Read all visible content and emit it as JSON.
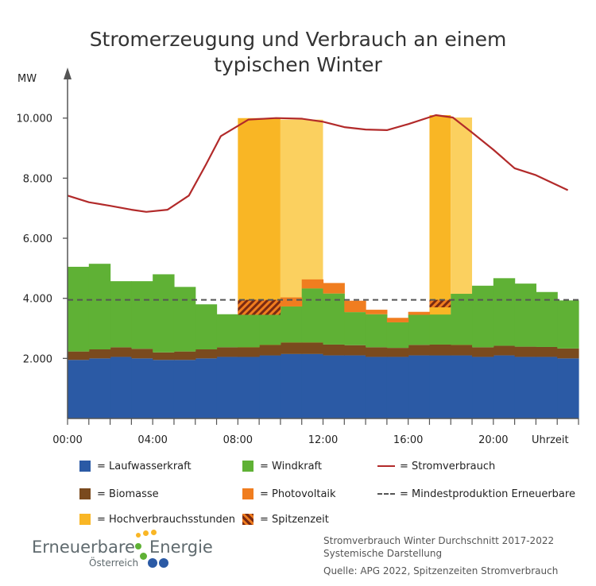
{
  "chart_data": {
    "type": "area",
    "title_line1": "Stromerzeugung und Verbrauch an einem",
    "title_line2": "typischen Winter",
    "ylabel": "MW",
    "xlabel": "Uhrzeit",
    "ylim": [
      0,
      11500
    ],
    "xlim": [
      0,
      24
    ],
    "y_ticks": [
      2000,
      4000,
      6000,
      8000,
      10000
    ],
    "y_tick_labels": [
      "2.000",
      "4.000",
      "6.000",
      "8.000",
      "10.000"
    ],
    "x_tick_hours": [
      0,
      4,
      8,
      12,
      16,
      20
    ],
    "x_tick_labels": [
      "00:00",
      "04:00",
      "08:00",
      "12:00",
      "16:00",
      "20:00"
    ],
    "hours": [
      0,
      1,
      2,
      3,
      4,
      5,
      6,
      7,
      8,
      9,
      10,
      11,
      12,
      13,
      14,
      15,
      16,
      17,
      18,
      19,
      20,
      21,
      22,
      23
    ],
    "stacked_series": [
      {
        "name": "Laufwasserkraft",
        "color": "#2b5aa5",
        "values": [
          1950,
          2000,
          2050,
          2000,
          1950,
          1950,
          2000,
          2050,
          2050,
          2100,
          2150,
          2150,
          2100,
          2100,
          2050,
          2050,
          2100,
          2100,
          2100,
          2050,
          2100,
          2050,
          2050,
          2000
        ]
      },
      {
        "name": "Biomasse",
        "color": "#7a4a1e",
        "values": [
          280,
          300,
          320,
          320,
          250,
          280,
          300,
          320,
          320,
          350,
          380,
          380,
          360,
          340,
          320,
          300,
          350,
          360,
          350,
          320,
          320,
          340,
          330,
          330
        ]
      },
      {
        "name": "Windkraft",
        "color": "#5fb135",
        "values": [
          2820,
          2850,
          2200,
          2250,
          2600,
          2150,
          1500,
          1100,
          1100,
          1100,
          1200,
          1800,
          1700,
          1100,
          1100,
          850,
          1000,
          1000,
          1700,
          2050,
          2250,
          2100,
          1830,
          1600
        ]
      },
      {
        "name": "Photovoltaik",
        "color": "#f07d1f",
        "values": [
          0,
          0,
          0,
          0,
          0,
          0,
          0,
          0,
          100,
          250,
          300,
          300,
          350,
          380,
          150,
          150,
          100,
          0,
          0,
          0,
          0,
          0,
          0,
          0
        ]
      }
    ],
    "consumption": {
      "name": "Stromverbrauch",
      "color": "#b22a2a",
      "x": [
        0,
        1,
        2,
        3,
        3.7,
        4.7,
        5.7,
        6.5,
        7.2,
        8.5,
        9.8,
        11,
        12,
        13,
        14,
        15,
        16,
        17.3,
        18.1,
        19,
        20,
        21,
        22,
        23.5
      ],
      "values": [
        7420,
        7200,
        7080,
        6950,
        6880,
        6950,
        7420,
        8450,
        9400,
        9950,
        10000,
        9980,
        9880,
        9700,
        9620,
        9600,
        9800,
        10100,
        10020,
        9520,
        8950,
        8330,
        8100,
        7600
      ]
    },
    "min_renewable": {
      "name": "Mindestproduktion Erneuerbare",
      "color": "#555555",
      "value": 3950
    },
    "peak_hours": [
      {
        "start": 8,
        "end": 10,
        "top": 10000,
        "color": "#f9b625"
      },
      {
        "start": 10,
        "end": 12,
        "top": 9950,
        "color": "#fbd05f"
      },
      {
        "start": 17,
        "end": 18,
        "top": 10100,
        "color": "#f9b625"
      },
      {
        "start": 18,
        "end": 19,
        "top": 10020,
        "color": "#fbd05f"
      }
    ],
    "spitzenzeit": [
      {
        "start": 8,
        "end": 10,
        "bottom": 3450,
        "top": 3950
      },
      {
        "start": 17,
        "end": 18,
        "bottom": 3700,
        "top": 3950
      }
    ]
  },
  "legend": [
    {
      "label": "= Laufwasserkraft",
      "color": "#2b5aa5",
      "kind": "box"
    },
    {
      "label": "= Windkraft",
      "color": "#5fb135",
      "kind": "box"
    },
    {
      "label": "= Stromverbrauch",
      "color": "#b22a2a",
      "kind": "line"
    },
    {
      "label": "= Biomasse",
      "color": "#7a4a1e",
      "kind": "box"
    },
    {
      "label": "= Photovoltaik",
      "color": "#f07d1f",
      "kind": "box"
    },
    {
      "label": "= Mindestproduktion Erneuerbare",
      "color": "#555555",
      "kind": "dash"
    },
    {
      "label": "= Hochverbrauchsstunden",
      "color": "#f9b625",
      "kind": "box"
    },
    {
      "label": "= Spitzenzeit",
      "color": "#f07d1f",
      "kind": "hatch"
    }
  ],
  "logo": {
    "word1": "Erneuerbare",
    "word2": "Energie",
    "sub": "Österreich"
  },
  "notes": {
    "line1": "Stromverbrauch Winter Durchschnitt 2017-2022",
    "line2": "Systemische Darstellung",
    "source": "Quelle: APG 2022, Spitzenzeiten Stromverbrauch"
  }
}
